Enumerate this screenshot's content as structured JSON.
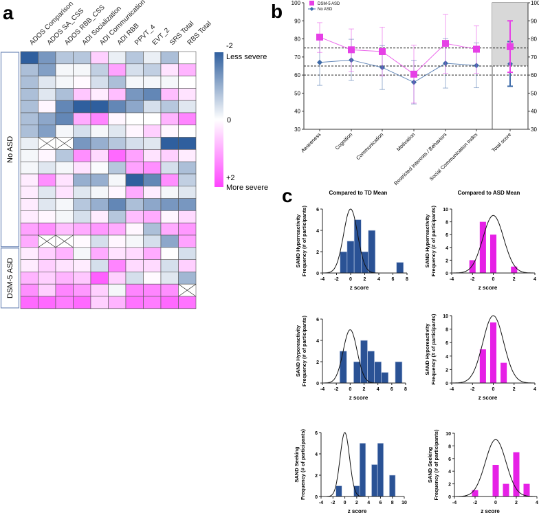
{
  "panel_labels": {
    "a": "a",
    "b": "b",
    "c": "c"
  },
  "colors": {
    "blue": "#2f5f9e",
    "pink": "#ff44ff",
    "asd": "#e640e6",
    "noasd": "#3d6aa8"
  },
  "chart_data": [
    {
      "type": "heatmap",
      "id": "a",
      "columns": [
        "ADOS Comparison",
        "ADOS SA_CSS",
        "ADOS RBB_CSS",
        "ADI Socialization",
        "ADI Communication",
        "ADI RBB",
        "PPVT_4",
        "EVT_2",
        "SRS Total",
        "RBS Total"
      ],
      "groups": [
        {
          "label": "No ASD",
          "rows": 16
        },
        {
          "label": "DSM-5 ASD",
          "rows": 5
        }
      ],
      "colorbar": {
        "min_label": "-2",
        "min_desc": "Less severe",
        "mid_label": "0",
        "max_label": "+2",
        "max_desc": "More severe",
        "range": [
          -2,
          2
        ]
      },
      "values": [
        [
          -2,
          -1.3,
          -0.7,
          -0.7,
          0.5,
          -0.2,
          -0.7,
          -0.2,
          -0.8,
          0
        ],
        [
          -0.8,
          -1.2,
          -0.1,
          -0.1,
          -0.6,
          1.0,
          -0.4,
          -0.6,
          0.3,
          0.8
        ],
        [
          -0.8,
          -0.3,
          -0.1,
          0.05,
          -0.4,
          -0.8,
          -0.1,
          -0.1,
          -0.1,
          0
        ],
        [
          -0.8,
          -0.3,
          -0.8,
          0.6,
          0.2,
          0.7,
          -1.3,
          -1.5,
          0.7,
          0.3
        ],
        [
          -0.8,
          0.1,
          -1.5,
          -2,
          -2,
          -1.5,
          -1.1,
          -0.4,
          -0.7,
          -0.3
        ],
        [
          -0.8,
          -1.1,
          -1.5,
          0.9,
          1.3,
          0.1,
          0,
          0,
          0.8,
          1.3
        ],
        [
          -0.8,
          -1.2,
          -0.1,
          -0.4,
          -0.1,
          -0.3,
          0.1,
          0.5,
          0.1,
          0
        ],
        [
          -0.2,
          null,
          null,
          -1.3,
          -1.0,
          -0.7,
          -0.4,
          -0.3,
          -2,
          -2
        ],
        [
          -0.1,
          0.1,
          -0.7,
          1.2,
          0.4,
          1.6,
          1.0,
          0.3,
          0.5,
          0.2
        ],
        [
          -0.1,
          -0.3,
          -0.1,
          0.3,
          -0.05,
          -0.7,
          1.0,
          1.2,
          -0.4,
          -0.8
        ],
        [
          0.2,
          1.2,
          0.3,
          -1.0,
          -1.0,
          -0.1,
          -2,
          -1.5,
          1.2,
          -0.6
        ],
        [
          0.2,
          -0.3,
          0.3,
          -0.3,
          -0.1,
          0.1,
          0.9,
          0.2,
          -0.1,
          -0.3
        ],
        [
          0.2,
          -0.3,
          -0.1,
          -0.7,
          -1.0,
          -1.5,
          -0.8,
          -1.1,
          -1.3,
          -1.3
        ],
        [
          0.2,
          0.1,
          -0.1,
          -0.4,
          0.2,
          -0.7,
          0.7,
          0.9,
          0.1,
          0.4
        ],
        [
          1.0,
          1.2,
          0.7,
          0.9,
          1.1,
          0.9,
          0.1,
          -0.8,
          0.9,
          1.1
        ],
        [
          0.9,
          null,
          null,
          0.05,
          -0.4,
          0.1,
          -0.1,
          -0.4,
          -1.1,
          1.0
        ],
        [
          0.2,
          0.5,
          0.8,
          -0.1,
          0.9,
          0.3,
          0.4,
          0.9,
          0,
          -0.4
        ],
        [
          0.2,
          0.5,
          0.3,
          0.2,
          -0.4,
          1.3,
          0.4,
          0.4,
          -0.4,
          0.5
        ],
        [
          0.8,
          0.5,
          0.8,
          0.6,
          1.7,
          0.5,
          -0.4,
          0.05,
          -0.3,
          -0.9
        ],
        [
          1.2,
          0.5,
          1.3,
          1.1,
          0.5,
          -0.1,
          1.3,
          1.3,
          1.2,
          null
        ],
        [
          1.6,
          1.6,
          1.4,
          1.6,
          0.5,
          0.8,
          1.5,
          1.4,
          1.6,
          1.5
        ]
      ]
    },
    {
      "type": "line",
      "id": "b",
      "categories": [
        "Awareness",
        "Cognition",
        "Communication",
        "Motivation",
        "Restricted Interests / Behaviors",
        "Social Communication Index",
        "Total score"
      ],
      "ylim": [
        30,
        100
      ],
      "yticks": [
        "30",
        "40",
        "50",
        "60",
        "70",
        "80",
        "90",
        "100"
      ],
      "reference_lines": [
        60,
        65,
        75
      ],
      "shaded_range": [
        65,
        100
      ],
      "series": [
        {
          "name": "DSM-5 ASD",
          "values": [
            81,
            74,
            73,
            60.5,
            77.5,
            74.3,
            75.7
          ],
          "upper": [
            89,
            85.5,
            86.5,
            76.5,
            93.5,
            87.2,
            90
          ],
          "lower": [
            72.5,
            62,
            59.5,
            44.5,
            61,
            61,
            61.5
          ]
        },
        {
          "name": "No ASD",
          "values": [
            67,
            68.3,
            64.2,
            56,
            66.5,
            65.3,
            66.2
          ],
          "upper": [
            79.8,
            79.8,
            76.3,
            68.2,
            80.2,
            77.8,
            78.5
          ],
          "lower": [
            54.3,
            57,
            52,
            44,
            52.8,
            53,
            53.8
          ]
        }
      ]
    },
    {
      "type": "bar",
      "id": "c",
      "column_titles": [
        "Compared to TD Mean",
        "Compared to ASD Mean"
      ],
      "xlabel": "z score",
      "ylabel": "Frequency (# of participants)",
      "panels": [
        {
          "measure": "SAND Hyperreactivity",
          "ref": "TD",
          "xlim": [
            -4,
            8
          ],
          "xticks": [
            -4,
            -2,
            0,
            2,
            4,
            6,
            8
          ],
          "ylim": [
            0,
            6
          ],
          "yticks": [
            0,
            2,
            4,
            6
          ],
          "bins": [
            -1,
            0,
            1,
            2,
            3,
            7
          ],
          "counts": [
            2,
            3,
            5,
            2,
            4,
            1
          ],
          "curve_peak": 6,
          "curve_sd": 1
        },
        {
          "measure": "SAND Hyperreactivity",
          "ref": "ASD",
          "xlim": [
            -4,
            4
          ],
          "xticks": [
            -4,
            -2,
            0,
            2,
            4
          ],
          "ylim": [
            0,
            10
          ],
          "yticks": [
            0,
            2,
            4,
            6,
            8,
            10
          ],
          "bins": [
            -2,
            -1,
            0,
            2
          ],
          "counts": [
            2,
            8,
            6,
            1
          ],
          "curve_peak": 9,
          "curve_sd": 1
        },
        {
          "measure": "SAND Hyporeactivity",
          "ref": "TD",
          "xlim": [
            -4,
            8
          ],
          "xticks": [
            -4,
            -2,
            0,
            2,
            4,
            6,
            8
          ],
          "ylim": [
            0,
            6
          ],
          "yticks": [
            0,
            2,
            4,
            6
          ],
          "bins": [
            -1,
            1,
            2,
            3,
            4,
            5,
            7
          ],
          "counts": [
            3,
            2,
            4,
            3,
            2,
            1,
            2
          ],
          "curve_peak": 5,
          "curve_sd": 1
        },
        {
          "measure": "SAND Hyporeactivity",
          "ref": "ASD",
          "xlim": [
            -4,
            4
          ],
          "xticks": [
            -4,
            -2,
            0,
            2,
            4
          ],
          "ylim": [
            0,
            10
          ],
          "yticks": [
            0,
            2,
            4,
            6,
            8,
            10
          ],
          "bins": [
            -1,
            0,
            1
          ],
          "counts": [
            5,
            9,
            3
          ],
          "curve_peak": 10,
          "curve_sd": 1
        },
        {
          "measure": "SAND Seeking",
          "ref": "TD",
          "xlim": [
            -4,
            10
          ],
          "xticks": [
            -4,
            -2,
            0,
            2,
            4,
            6,
            8,
            10
          ],
          "ylim": [
            0,
            6
          ],
          "yticks": [
            0,
            2,
            4,
            6
          ],
          "bins": [
            -1,
            2,
            3,
            5,
            6,
            8
          ],
          "counts": [
            1,
            1,
            5,
            3,
            5,
            2
          ],
          "curve_peak": 6,
          "curve_sd": 0.8
        },
        {
          "measure": "SAND Seeking",
          "ref": "ASD",
          "xlim": [
            -4,
            4
          ],
          "xticks": [
            -4,
            -2,
            0,
            2,
            4
          ],
          "ylim": [
            0,
            10
          ],
          "yticks": [
            0,
            2,
            4,
            6,
            8,
            10
          ],
          "bins": [
            -2,
            0,
            1,
            2,
            3
          ],
          "counts": [
            1,
            5,
            2,
            7,
            2
          ],
          "curve_peak": 9,
          "curve_sd": 1
        }
      ]
    }
  ]
}
